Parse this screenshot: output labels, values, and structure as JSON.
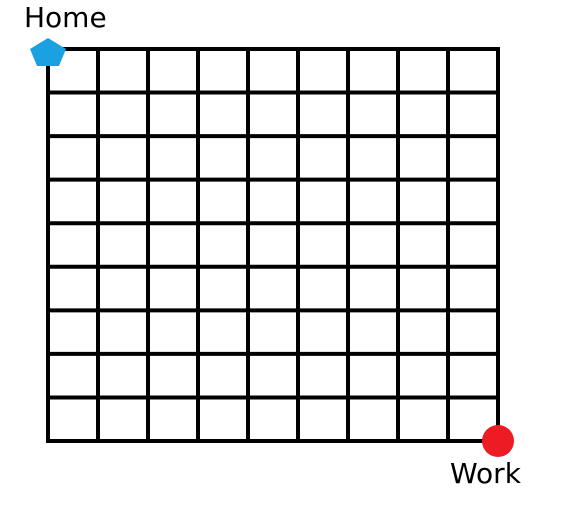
{
  "diagram": {
    "columns": 9,
    "rows": 9,
    "line_color": "#000000",
    "start": {
      "label": "Home",
      "marker": "pentagon",
      "color": "#1ba1e2",
      "corner": "top-left"
    },
    "end": {
      "label": "Work",
      "marker": "circle",
      "color": "#ed1c24",
      "corner": "bottom-right"
    }
  }
}
